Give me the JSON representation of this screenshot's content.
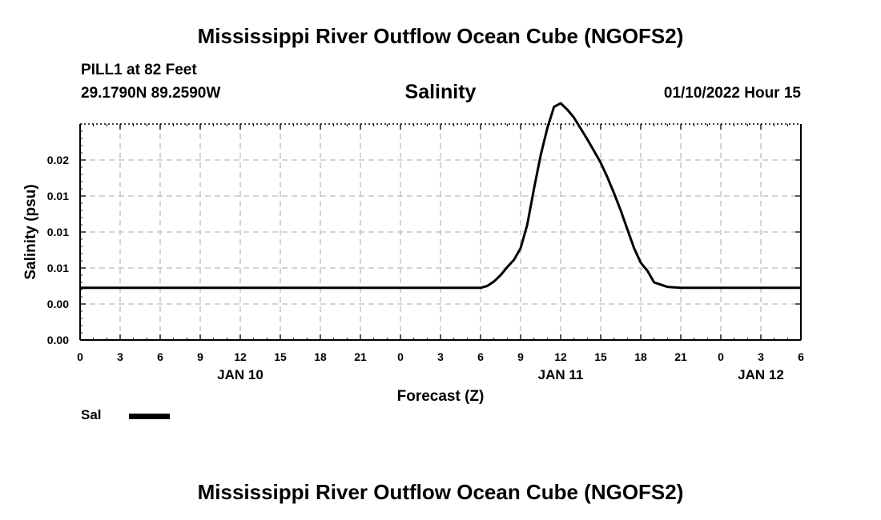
{
  "header": {
    "title": "Mississippi River Outflow Ocean Cube (NGOFS2)",
    "station": "PILL1 at 82 Feet",
    "coords": "29.1790N  89.2590W",
    "parameter": "Salinity",
    "datetime": "01/10/2022 Hour 15"
  },
  "footer": {
    "title": "Mississippi River Outflow Ocean Cube (NGOFS2)"
  },
  "legend": {
    "label": "Sal",
    "color": "#000000"
  },
  "chart_data": {
    "type": "line",
    "title": "Salinity",
    "xlabel": "Forecast (Z)",
    "ylabel": "Salinity (psu)",
    "xlim": [
      0,
      54
    ],
    "ylim": [
      0,
      0.024
    ],
    "y_ticks": [
      {
        "value": 0.0,
        "label": "0.00"
      },
      {
        "value": 0.004,
        "label": "0.00"
      },
      {
        "value": 0.008,
        "label": "0.01"
      },
      {
        "value": 0.012,
        "label": "0.01"
      },
      {
        "value": 0.016,
        "label": "0.01"
      },
      {
        "value": 0.02,
        "label": "0.02"
      }
    ],
    "x_ticks": [
      {
        "value": 0,
        "label": "0"
      },
      {
        "value": 3,
        "label": "3"
      },
      {
        "value": 6,
        "label": "6"
      },
      {
        "value": 9,
        "label": "9"
      },
      {
        "value": 12,
        "label": "12"
      },
      {
        "value": 15,
        "label": "15"
      },
      {
        "value": 18,
        "label": "18"
      },
      {
        "value": 21,
        "label": "21"
      },
      {
        "value": 24,
        "label": "0"
      },
      {
        "value": 27,
        "label": "3"
      },
      {
        "value": 30,
        "label": "6"
      },
      {
        "value": 33,
        "label": "9"
      },
      {
        "value": 36,
        "label": "12"
      },
      {
        "value": 39,
        "label": "15"
      },
      {
        "value": 42,
        "label": "18"
      },
      {
        "value": 45,
        "label": "21"
      },
      {
        "value": 48,
        "label": "0"
      },
      {
        "value": 51,
        "label": "3"
      },
      {
        "value": 54,
        "label": "6"
      }
    ],
    "day_labels": [
      {
        "value": 12,
        "label": "JAN 10"
      },
      {
        "value": 36,
        "label": "JAN 11"
      },
      {
        "value": 51,
        "label": "JAN 12"
      }
    ],
    "grid": true,
    "legend_position": "bottom-left",
    "series": [
      {
        "name": "Sal",
        "color": "#000000",
        "x": [
          0,
          3,
          6,
          9,
          12,
          15,
          18,
          21,
          24,
          27,
          30,
          30.5,
          31,
          31.5,
          32,
          32.5,
          33,
          33.5,
          34,
          34.5,
          35,
          35.5,
          36,
          36.5,
          37,
          37.5,
          38,
          38.5,
          39,
          39.5,
          40,
          40.5,
          41,
          41.5,
          42,
          42.5,
          43,
          44,
          45,
          48,
          51,
          54
        ],
        "y": [
          0.0058,
          0.0058,
          0.0058,
          0.0058,
          0.0058,
          0.0058,
          0.0058,
          0.0058,
          0.0058,
          0.0058,
          0.0058,
          0.006,
          0.0065,
          0.0072,
          0.0081,
          0.0089,
          0.0102,
          0.0128,
          0.0168,
          0.0205,
          0.0235,
          0.0259,
          0.0263,
          0.0256,
          0.0247,
          0.0235,
          0.0223,
          0.021,
          0.0197,
          0.0181,
          0.0163,
          0.0144,
          0.0123,
          0.0102,
          0.0086,
          0.0077,
          0.0064,
          0.0059,
          0.0058,
          0.0058,
          0.0058,
          0.0058
        ]
      }
    ]
  }
}
